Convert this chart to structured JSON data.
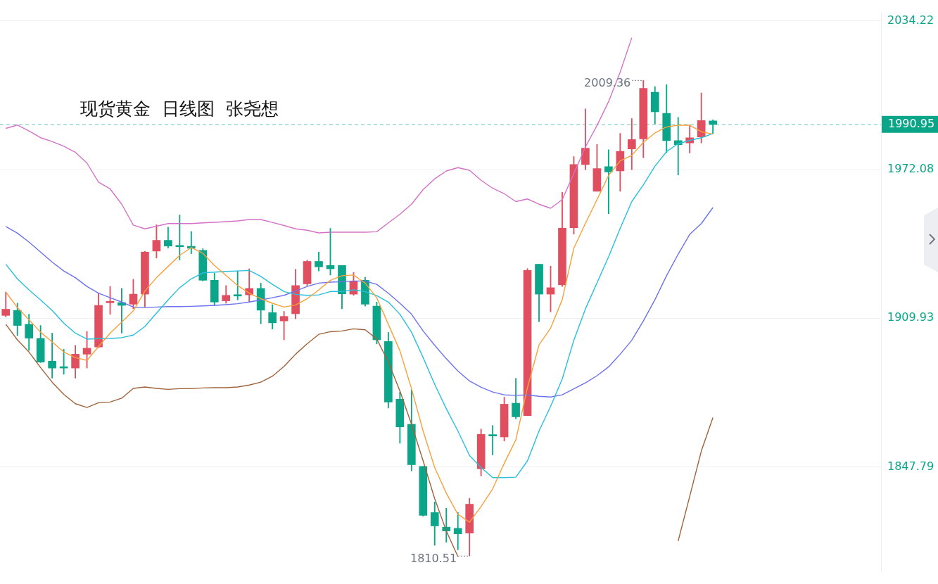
{
  "chart_data": {
    "type": "candlestick",
    "title": "现货黄金  日线图  张尧想",
    "categories": [
      null,
      null,
      null,
      null,
      null,
      null,
      null,
      null,
      null,
      null,
      null,
      null,
      null,
      null,
      null,
      null,
      null,
      null,
      null,
      null,
      null,
      null,
      null,
      null,
      null,
      null,
      null,
      null,
      null,
      null,
      null,
      null,
      null,
      null,
      null,
      null,
      null,
      null,
      null,
      null,
      null,
      null,
      null,
      null,
      null,
      null,
      null,
      null,
      null,
      null,
      null,
      null,
      null,
      null,
      null,
      null,
      null,
      null,
      null,
      null,
      null,
      null,
      null,
      null,
      null,
      null,
      null,
      null,
      null,
      null,
      null,
      null,
      null,
      null,
      null,
      null
    ],
    "ohlc": [
      [
        1911.1,
        1920.9,
        1910.5,
        1913.7
      ],
      [
        1913.2,
        1916.2,
        1902.7,
        1906.9
      ],
      [
        1907.4,
        1911.6,
        1896.5,
        1901.6
      ],
      [
        1901.5,
        1906.9,
        1891.4,
        1891.6
      ],
      [
        1892.0,
        1903.7,
        1884.9,
        1889.1
      ],
      [
        1889.3,
        1897.0,
        1886.5,
        1889.1
      ],
      [
        1889.1,
        1898.6,
        1884.9,
        1894.9
      ],
      [
        1894.9,
        1904.4,
        1889.1,
        1897.4
      ],
      [
        1897.9,
        1920.4,
        1897.6,
        1915.3
      ],
      [
        1916.4,
        1923.2,
        1911.6,
        1916.5
      ],
      [
        1916.5,
        1922.4,
        1903.7,
        1915.3
      ],
      [
        1915.8,
        1926.2,
        1913.9,
        1920.0
      ],
      [
        1920.0,
        1937.9,
        1914.6,
        1937.6
      ],
      [
        1938.0,
        1949.0,
        1935.1,
        1942.5
      ],
      [
        1942.5,
        1948.0,
        1939.3,
        1940.1
      ],
      [
        1940.0,
        1953.1,
        1934.3,
        1939.8
      ],
      [
        1940.0,
        1946.2,
        1936.9,
        1939.2
      ],
      [
        1938.3,
        1939.0,
        1925.5,
        1925.8
      ],
      [
        1925.8,
        1928.8,
        1915.3,
        1916.7
      ],
      [
        1917.2,
        1923.6,
        1916.2,
        1919.5
      ],
      [
        1919.4,
        1929.7,
        1917.6,
        1919.2
      ],
      [
        1919.7,
        1930.6,
        1916.7,
        1922.4
      ],
      [
        1922.4,
        1924.6,
        1907.6,
        1913.3
      ],
      [
        1912.3,
        1915.6,
        1905.4,
        1908.0
      ],
      [
        1908.8,
        1912.8,
        1900.9,
        1910.7
      ],
      [
        1911.8,
        1930.4,
        1909.7,
        1923.6
      ],
      [
        1924.3,
        1934.2,
        1923.6,
        1933.7
      ],
      [
        1933.7,
        1937.6,
        1929.7,
        1931.4
      ],
      [
        1932.0,
        1947.5,
        1928.0,
        1930.6
      ],
      [
        1932.0,
        1932.0,
        1913.9,
        1920.1
      ],
      [
        1920.0,
        1929.1,
        1919.5,
        1925.3
      ],
      [
        1925.8,
        1927.1,
        1915.0,
        1915.8
      ],
      [
        1915.0,
        1916.7,
        1899.2,
        1900.9
      ],
      [
        1900.2,
        1904.0,
        1872.4,
        1874.9
      ],
      [
        1876.1,
        1879.1,
        1857.7,
        1864.5
      ],
      [
        1865.6,
        1880.0,
        1846.1,
        1848.7
      ],
      [
        1848.0,
        1848.0,
        1827.2,
        1827.5
      ],
      [
        1828.7,
        1833.1,
        1815.0,
        1823.1
      ],
      [
        1822.6,
        1830.5,
        1816.3,
        1821.0
      ],
      [
        1822.1,
        1828.7,
        1813.1,
        1819.8
      ],
      [
        1820.1,
        1834.7,
        1810.51,
        1832.2
      ],
      [
        1847.0,
        1863.6,
        1844.0,
        1861.4
      ],
      [
        1860.8,
        1865.1,
        1852.8,
        1860.7
      ],
      [
        1860.3,
        1876.9,
        1858.6,
        1874.0
      ],
      [
        1874.4,
        1884.8,
        1867.9,
        1868.7
      ],
      [
        1869.2,
        1930.7,
        1869.2,
        1929.9
      ],
      [
        1932.5,
        1932.5,
        1908.5,
        1920.0
      ],
      [
        1920.0,
        1931.7,
        1912.6,
        1922.7
      ],
      [
        1923.9,
        1962.6,
        1923.2,
        1947.6
      ],
      [
        1947.8,
        1977.5,
        1945.1,
        1974.2
      ],
      [
        1974.2,
        1997.4,
        1972.0,
        1981.0
      ],
      [
        1963.0,
        1982.6,
        1963.0,
        1972.5
      ],
      [
        1973.3,
        1980.4,
        1953.6,
        1971.1
      ],
      [
        1971.5,
        1987.2,
        1963.0,
        1979.7
      ],
      [
        1980.7,
        1993.4,
        1972.0,
        1984.6
      ],
      [
        1984.9,
        2009.36,
        1977.0,
        2006.0
      ],
      [
        2004.4,
        2006.8,
        1991.2,
        1996.2
      ],
      [
        1995.6,
        2007.6,
        1979.2,
        1984.2
      ],
      [
        1984.2,
        1993.9,
        1969.8,
        1982.5
      ],
      [
        1983.2,
        1990.6,
        1979.0,
        1985.4
      ],
      [
        1985.7,
        2004.1,
        1983.2,
        1992.6
      ],
      [
        1992.4,
        1992.9,
        1987.2,
        1990.95
      ],
      null,
      null,
      null,
      null,
      null,
      null,
      null,
      null,
      null,
      null,
      null,
      null,
      null,
      null
    ],
    "colors": [
      "#e04f5f",
      "#0ba58a",
      "#0ba58a",
      "#0ba58a",
      "#0ba58a",
      "#0ba58a",
      "#e04f5f",
      "#e04f5f",
      "#e04f5f",
      "#e04f5f",
      "#0ba58a",
      "#e04f5f",
      "#e04f5f",
      "#e04f5f",
      "#0ba58a",
      "#0ba58a",
      "#0ba58a",
      "#0ba58a",
      "#0ba58a",
      "#e04f5f",
      "#0ba58a",
      "#e04f5f",
      "#0ba58a",
      "#0ba58a",
      "#e04f5f",
      "#e04f5f",
      "#e04f5f",
      "#0ba58a",
      "#0ba58a",
      "#0ba58a",
      "#e04f5f",
      "#0ba58a",
      "#0ba58a",
      "#0ba58a",
      "#0ba58a",
      "#0ba58a",
      "#0ba58a",
      "#0ba58a",
      "#0ba58a",
      "#0ba58a",
      "#e04f5f",
      "#e04f5f",
      "#0ba58a",
      "#e04f5f",
      "#0ba58a",
      "#e04f5f",
      "#0ba58a",
      "#e04f5f",
      "#e04f5f",
      "#e04f5f",
      "#e04f5f",
      "#e04f5f",
      "#0ba58a",
      "#e04f5f",
      "#e04f5f",
      "#e04f5f",
      "#0ba58a",
      "#0ba58a",
      "#0ba58a",
      "#e04f5f",
      "#e04f5f",
      "#0ba58a",
      null,
      null,
      null,
      null,
      null,
      null,
      null,
      null,
      null,
      null,
      null,
      null,
      null,
      null
    ],
    "series": [
      {
        "type": "line",
        "color": "#f7a13b",
        "values": [
          1920.9,
          1914.4,
          1909.3,
          1904.1,
          1900.0,
          1895.8,
          1893.5,
          1892.3,
          1898.1,
          1903.7,
          1908.3,
          1913.0,
          1921.3,
          1926.9,
          1931.6,
          1936.2,
          1939.5,
          1937.1,
          1932.0,
          1927.8,
          1923.6,
          1920.4,
          1918.1,
          1916.2,
          1914.6,
          1915.5,
          1918.1,
          1921.8,
          1925.8,
          1927.7,
          1928.0,
          1924.6,
          1918.5,
          1907.4,
          1896.3,
          1880.5,
          1862.8,
          1847.5,
          1836.8,
          1828.0,
          1824.7,
          1831.2,
          1838.6,
          1849.3,
          1859.1,
          1880.9,
          1898.8,
          1905.8,
          1917.7,
          1939.2,
          1949.6,
          1959.5,
          1969.6,
          1975.7,
          1978.0,
          1983.5,
          1987.4,
          1989.9,
          1990.6,
          1990.6,
          1987.9,
          1986.9,
          null,
          null,
          null,
          null,
          null,
          null,
          null,
          null,
          null,
          null,
          null,
          null,
          null,
          null
        ]
      },
      {
        "type": "line",
        "color": "#27bfdc",
        "values": [
          1932.5,
          1926.4,
          1921.8,
          1917.6,
          1913.2,
          1907.9,
          1903.7,
          1901.2,
          1901.4,
          1901.5,
          1901.8,
          1902.9,
          1906.5,
          1912.1,
          1917.6,
          1922.7,
          1926.4,
          1928.9,
          1929.2,
          1929.5,
          1929.7,
          1929.9,
          1927.4,
          1924.1,
          1921.1,
          1919.9,
          1919.5,
          1919.7,
          1921.1,
          1921.1,
          1921.8,
          1921.1,
          1919.4,
          1916.7,
          1911.6,
          1904.1,
          1893.5,
          1882.3,
          1872.1,
          1862.8,
          1852.6,
          1847.5,
          1843.3,
          1843.3,
          1843.5,
          1850.3,
          1862.8,
          1873.1,
          1884.5,
          1900.7,
          1913.8,
          1924.7,
          1935.6,
          1947.5,
          1958.7,
          1965.7,
          1973.5,
          1979.6,
          1982.9,
          1984.3,
          1985.4,
          1987.1,
          null,
          null,
          null,
          null,
          null,
          null,
          null,
          null,
          null,
          null,
          null,
          null,
          null,
          null
        ]
      },
      {
        "type": "line",
        "color": "#6b72ee",
        "values": [
          1948.3,
          1945.5,
          1941.8,
          1937.6,
          1933.4,
          1929.7,
          1926.9,
          1923.2,
          1920.4,
          1918.5,
          1916.7,
          1914.6,
          1914.4,
          1914.6,
          1914.8,
          1914.8,
          1914.9,
          1915.1,
          1915.3,
          1915.6,
          1916.0,
          1916.7,
          1917.6,
          1918.5,
          1919.5,
          1921.3,
          1923.2,
          1924.6,
          1925.0,
          1925.2,
          1925.5,
          1925.5,
          1924.1,
          1920.4,
          1916.2,
          1911.6,
          1904.6,
          1898.6,
          1893.0,
          1887.9,
          1883.7,
          1881.1,
          1879.1,
          1877.9,
          1877.7,
          1877.9,
          1877.3,
          1877.0,
          1877.9,
          1880.4,
          1882.9,
          1885.9,
          1889.6,
          1894.9,
          1900.7,
          1908.8,
          1917.7,
          1927.7,
          1936.7,
          1945.0,
          1949.5,
          1956.2,
          null,
          null,
          null,
          null,
          null,
          null,
          null,
          null,
          null,
          null,
          null,
          null,
          null,
          null
        ]
      },
      {
        "type": "line",
        "color": "#d472c8",
        "values": [
          1989.3,
          1990.7,
          1988.2,
          1985.4,
          1983.8,
          1981.8,
          1979.3,
          1974.8,
          1966.8,
          1964.0,
          1957.6,
          1948.9,
          1947.3,
          1948.4,
          1949.5,
          1949.5,
          1949.5,
          1949.8,
          1950.0,
          1950.3,
          1950.6,
          1951.2,
          1951.2,
          1950.0,
          1948.7,
          1947.3,
          1946.7,
          1945.6,
          1945.9,
          1945.9,
          1945.9,
          1945.9,
          1946.1,
          1949.8,
          1953.4,
          1957.6,
          1963.7,
          1968.2,
          1971.5,
          1972.9,
          1971.8,
          1967.6,
          1964.3,
          1962.0,
          1958.7,
          1959.8,
          1957.6,
          1955.9,
          1959.5,
          1970.4,
          1981.5,
          1990.5,
          2000.5,
          2012.8,
          2027.2,
          null,
          null,
          null,
          null,
          null,
          null,
          null,
          null,
          null,
          null,
          null,
          null,
          null,
          null,
          null,
          null,
          null,
          null,
          null,
          null,
          null
        ]
      },
      {
        "type": "line",
        "color": "#a0623a",
        "values": [
          1907.4,
          1900.9,
          1895.8,
          1889.3,
          1883.2,
          1878.1,
          1874.2,
          1872.6,
          1874.6,
          1874.9,
          1876.5,
          1880.6,
          1881.2,
          1880.6,
          1880.2,
          1880.5,
          1880.5,
          1880.8,
          1880.9,
          1880.9,
          1881.2,
          1882.0,
          1883.2,
          1885.7,
          1889.8,
          1894.9,
          1899.3,
          1903.2,
          1904.3,
          1904.6,
          1905.5,
          1905.1,
          1901.3,
          1891.6,
          1879.5,
          1865.6,
          1850.3,
          1834.5,
          1821.0,
          1810.3,
          null,
          null,
          null,
          null,
          null,
          null,
          null,
          null,
          null,
          null,
          null,
          null,
          null,
          null,
          null,
          null,
          null,
          null,
          1816.8,
          1835.5,
          1854.4,
          1868.4,
          null,
          null,
          null,
          null,
          null,
          null,
          null,
          null,
          null,
          null,
          null,
          null,
          null,
          null
        ]
      }
    ],
    "ylim": [
      1804.3,
      2037.5
    ],
    "yticks": [
      1847.79,
      1909.93,
      1972.08,
      2034.22
    ],
    "grid": "y",
    "ref_lines": [
      {
        "axis": "y",
        "value": 1990.95,
        "label": "1990.95",
        "color": "#0ba58a",
        "line_style": "dashed"
      }
    ],
    "annotations": [
      "2009.36",
      "1810.51"
    ]
  }
}
